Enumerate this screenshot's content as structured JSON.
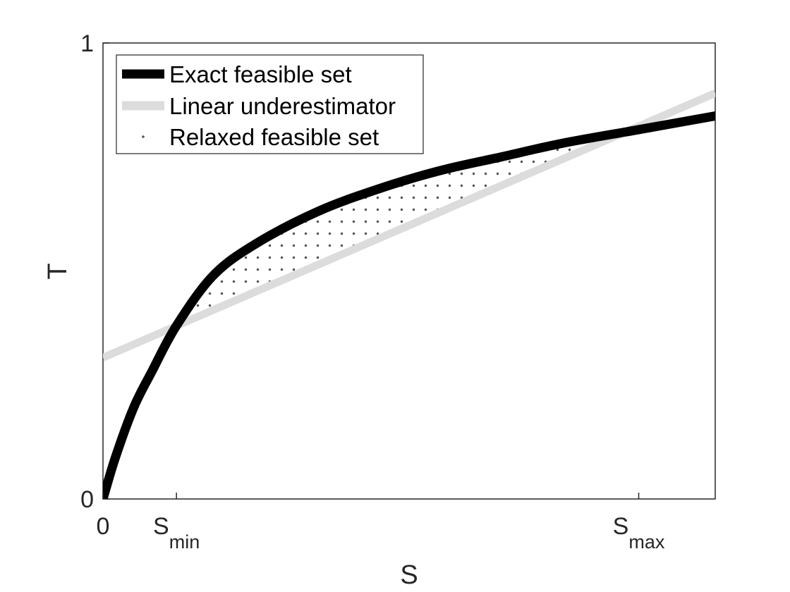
{
  "chart_data": {
    "type": "line",
    "xlabel": "S",
    "ylabel": "T",
    "xlim": [
      0,
      1
    ],
    "ylim": [
      0,
      1
    ],
    "x_ticks": [
      {
        "value": 0,
        "label": "0",
        "sub": ""
      },
      {
        "value": 0.12,
        "label": "S",
        "sub": "min"
      },
      {
        "value": 0.875,
        "label": "S",
        "sub": "max"
      }
    ],
    "y_ticks": [
      {
        "value": 0,
        "label": "0"
      },
      {
        "value": 1,
        "label": "1"
      }
    ],
    "grid": false,
    "legend_position": "top-left",
    "series": [
      {
        "name": "Exact feasible set",
        "color": "#000000",
        "x": [
          0,
          0.02,
          0.05,
          0.08,
          0.12,
          0.18,
          0.25,
          0.35,
          0.45,
          0.55,
          0.65,
          0.75,
          0.875,
          1.0
        ],
        "y": [
          0,
          0.09,
          0.2,
          0.28,
          0.38,
          0.49,
          0.56,
          0.63,
          0.68,
          0.72,
          0.75,
          0.78,
          0.81,
          0.84
        ]
      },
      {
        "name": "Linear underestimator",
        "color": "#dcdcdc",
        "x": [
          0,
          1
        ],
        "y": [
          0.31,
          0.89
        ]
      }
    ],
    "regions": [
      {
        "name": "Relaxed feasible set",
        "pattern": "dots",
        "color": "#555555",
        "x_range": [
          0.12,
          0.875
        ]
      }
    ]
  }
}
